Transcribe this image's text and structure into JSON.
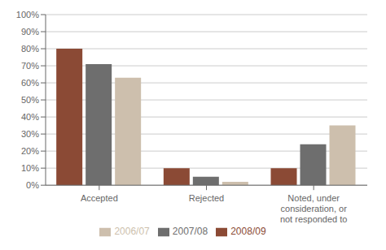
{
  "chart_data": {
    "type": "bar",
    "categories": [
      "Accepted",
      "Rejected",
      "Noted, under\nconsideration, or\nnot responded to"
    ],
    "series": [
      {
        "name": "2008/09",
        "color": "#8b4a35",
        "values": [
          80,
          10,
          10
        ]
      },
      {
        "name": "2007/08",
        "color": "#6e6e6e",
        "values": [
          71,
          5,
          24
        ]
      },
      {
        "name": "2006/07",
        "color": "#cdbfad",
        "values": [
          63,
          2,
          35
        ]
      }
    ],
    "ylim": [
      0,
      100
    ],
    "yticks": [
      {
        "value": 0,
        "label": "0%"
      },
      {
        "value": 10,
        "label": "10%"
      },
      {
        "value": 20,
        "label": "20%"
      },
      {
        "value": 30,
        "label": "30%"
      },
      {
        "value": 40,
        "label": "40%"
      },
      {
        "value": 50,
        "label": "50%"
      },
      {
        "value": 60,
        "label": "60%"
      },
      {
        "value": 70,
        "label": "70%"
      },
      {
        "value": 80,
        "label": "80%"
      },
      {
        "value": 90,
        "label": "90%"
      },
      {
        "value": 100,
        "label": "100%"
      }
    ],
    "grid": true,
    "legend": "bottom"
  }
}
